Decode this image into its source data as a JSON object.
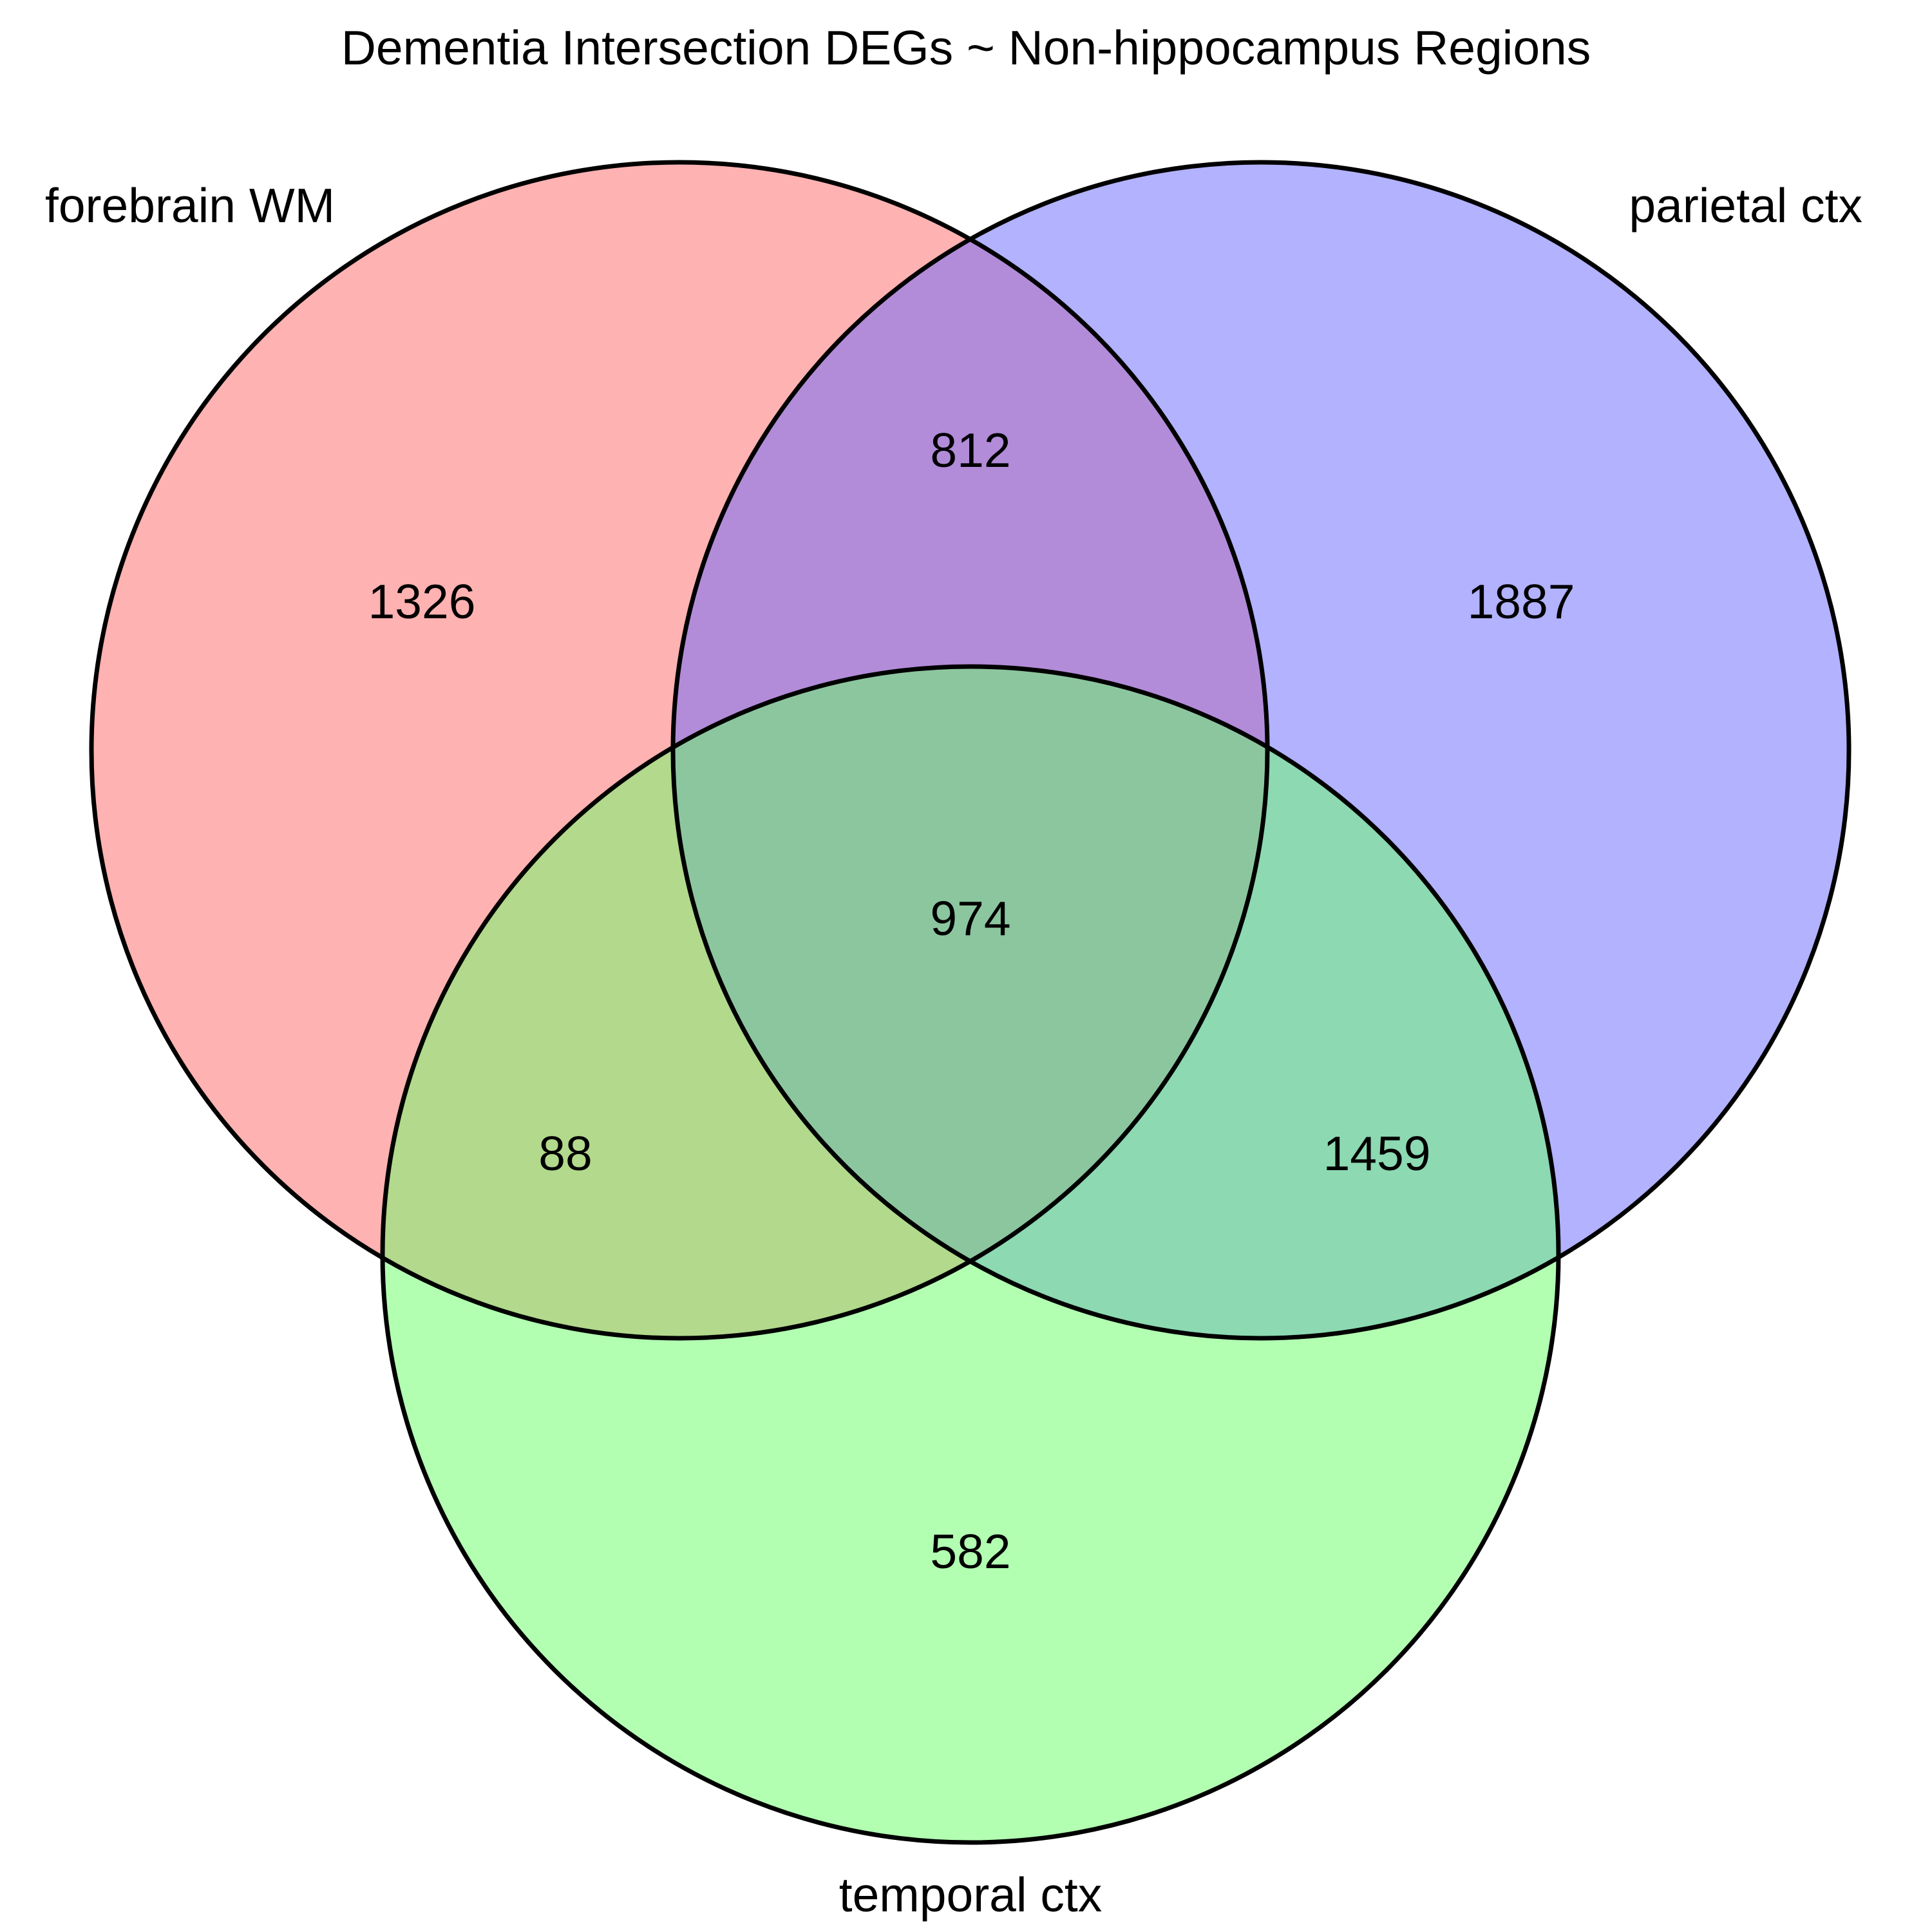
{
  "title": "Dementia Intersection DEGs ~ Non-hippocampus Regions",
  "sets": [
    {
      "id": "A",
      "name": "forebrain WM",
      "color": "#ff6666"
    },
    {
      "id": "B",
      "name": "parietal ctx",
      "color": "#6666ff"
    },
    {
      "id": "C",
      "name": "temporal ctx",
      "color": "#66ff66"
    }
  ],
  "regions": {
    "A_only": "1326",
    "B_only": "1887",
    "C_only": "582",
    "AB": "812",
    "AC": "88",
    "BC": "1459",
    "ABC": "974"
  }
}
